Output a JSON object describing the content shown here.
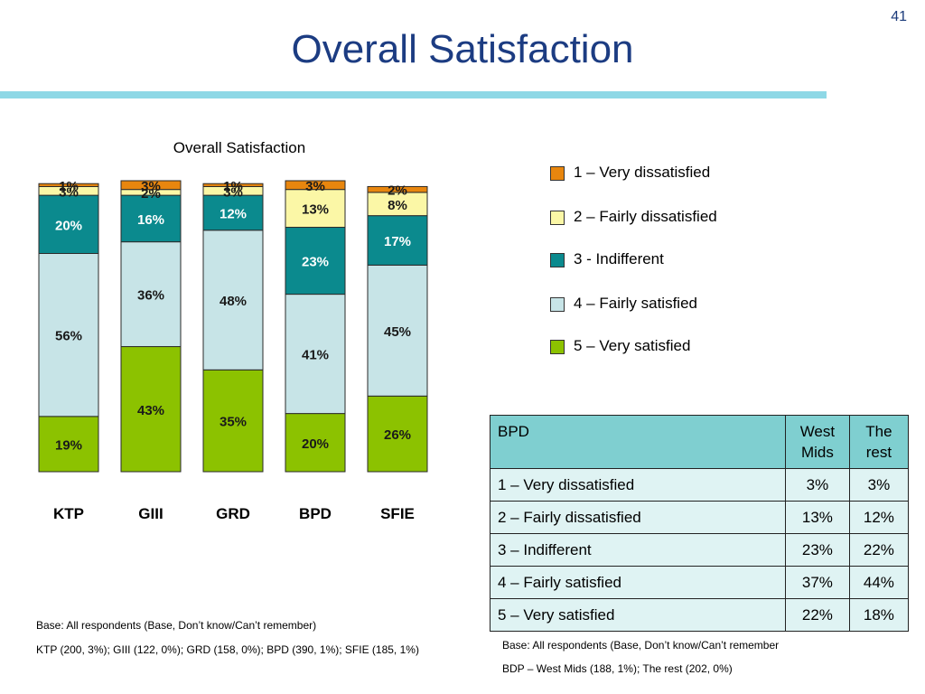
{
  "slide_number": "41",
  "title": "Overall Satisfaction",
  "chart_data": {
    "type": "bar",
    "stacked": true,
    "percent_stacked": true,
    "title": "Overall Satisfaction",
    "categories": [
      "KTP",
      "GIII",
      "GRD",
      "BPD",
      "SFIE"
    ],
    "series": [
      {
        "name": "5 – Very satisfied",
        "color": "#8cc200",
        "values": [
          19,
          43,
          35,
          20,
          26
        ],
        "labels": [
          "19%",
          "43%",
          "35%",
          "20%",
          "26%"
        ]
      },
      {
        "name": "4 – Fairly satisfied",
        "color": "#c7e4e7",
        "values": [
          56,
          36,
          48,
          41,
          45
        ],
        "labels": [
          "56%",
          "36%",
          "48%",
          "41%",
          "45%"
        ]
      },
      {
        "name": "3 - Indifferent",
        "color": "#0b8a8e",
        "values": [
          20,
          16,
          12,
          23,
          17
        ],
        "labels": [
          "20%",
          "16%",
          "12%",
          "23%",
          "17%"
        ]
      },
      {
        "name": "2 – Fairly dissatisfied",
        "color": "#fbf7a6",
        "values": [
          3,
          2,
          3,
          13,
          8
        ],
        "labels": [
          "3%",
          "2%",
          "3%",
          "13%",
          "8%"
        ]
      },
      {
        "name": "1 – Very dissatisfied",
        "color": "#e8860e",
        "values": [
          1,
          3,
          1,
          3,
          2
        ],
        "labels": [
          "1%",
          "3%",
          "1%",
          "3%",
          "2%"
        ]
      }
    ],
    "legend_order": [
      4,
      3,
      2,
      1,
      0
    ],
    "legend_position": "right",
    "ylim": [
      0,
      100
    ],
    "grid": false
  },
  "table": {
    "headers": [
      "BPD",
      "West Mids",
      "The rest"
    ],
    "header_lines": [
      [
        "BPD"
      ],
      [
        "West",
        "Mids"
      ],
      [
        "The",
        "rest"
      ]
    ],
    "rows": [
      [
        "1 – Very dissatisfied",
        "3%",
        "3%"
      ],
      [
        "2 – Fairly dissatisfied",
        "13%",
        "12%"
      ],
      [
        "3 – Indifferent",
        "23%",
        "22%"
      ],
      [
        "4 – Fairly satisfied",
        "37%",
        "44%"
      ],
      [
        "5 – Very satisfied",
        "22%",
        "18%"
      ]
    ]
  },
  "notes": {
    "chart_base": "Base: All respondents (Base, Don’t know/Can’t remember)",
    "chart_counts": "KTP (200, 3%); GIII (122, 0%); GRD (158, 0%); BPD (390, 1%); SFIE (185, 1%)",
    "table_base": "Base: All respondents (Base, Don’t know/Can’t remember",
    "table_counts": "BDP – West Mids (188, 1%); The rest (202, 0%)"
  }
}
